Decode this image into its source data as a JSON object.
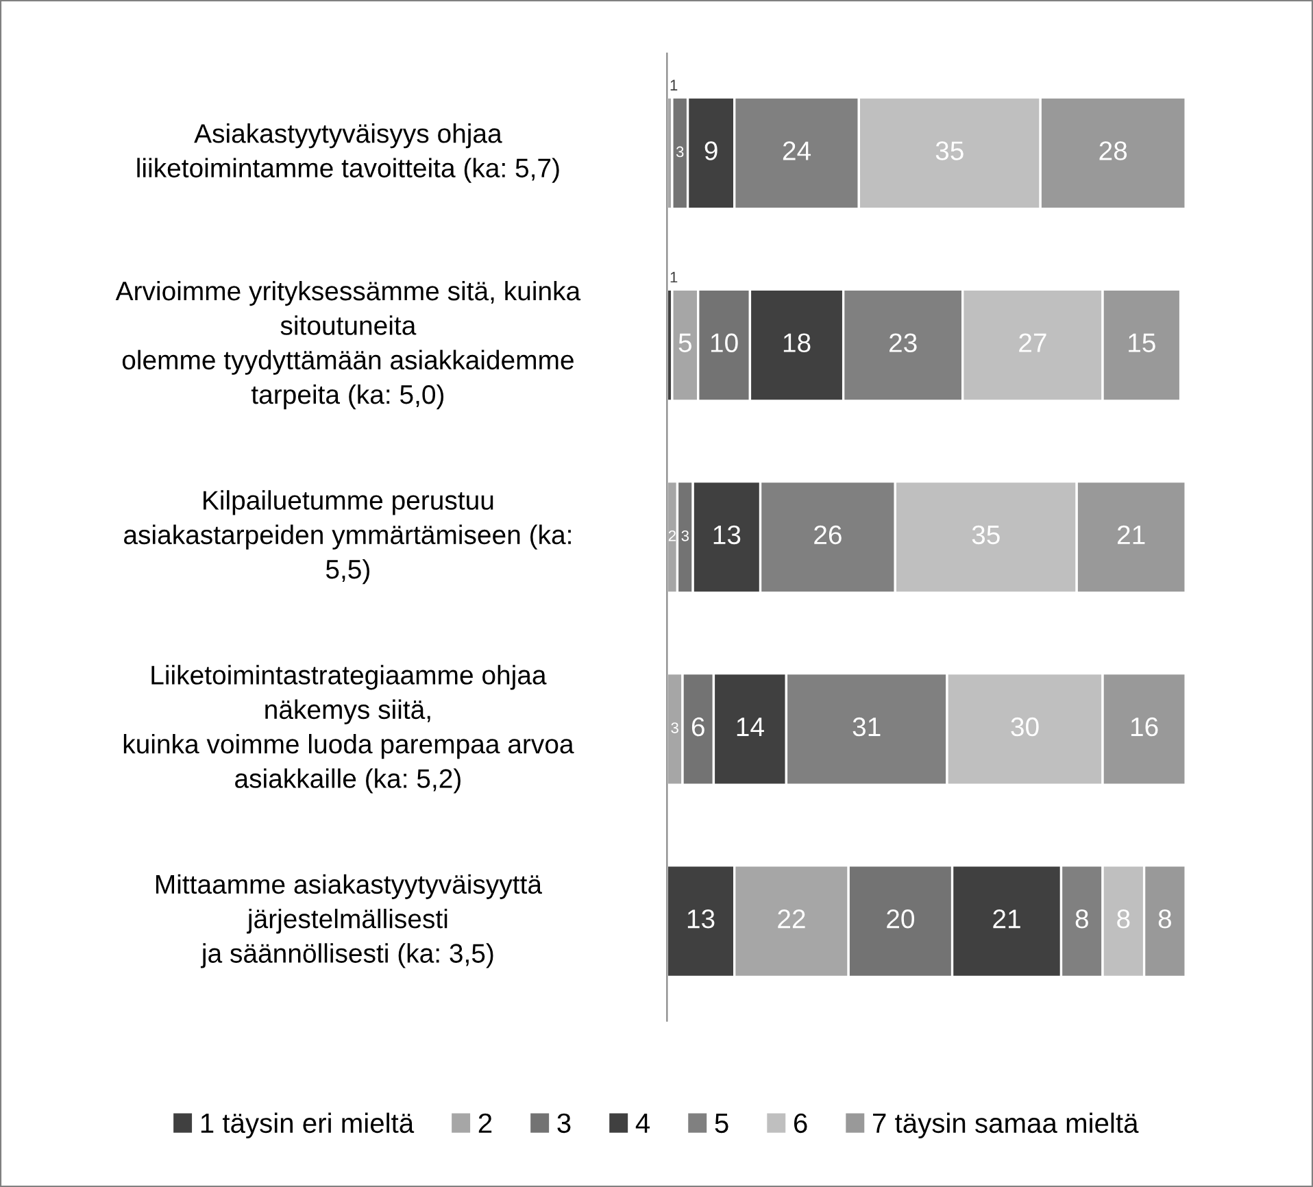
{
  "chart_data": {
    "type": "bar",
    "orientation": "horizontal",
    "stacked": true,
    "data_labels": true,
    "legend": "bottom",
    "grid": false,
    "categories": [
      "Asiakastyytyväisyys ohjaa\nliiketoimintamme tavoitteita (ka: 5,7)",
      "Arvioimme yrityksessämme sitä, kuinka\nsitoutuneita\nolemme tyydyttämään asiakkaidemme\ntarpeita (ka: 5,0)",
      "Kilpailuetumme perustuu\nasiakastarpeiden ymmärtämiseen (ka:\n5,5)",
      "Liiketoimintastrategiaamme ohjaa\nnäkemys siitä,\nkuinka voimme luoda parempaa arvoa\nasiakkaille (ka: 5,2)",
      "Mittaamme asiakastyytyväisyyttä\njärjestelmällisesti\nja säännöllisesti (ka: 3,5)"
    ],
    "series": [
      {
        "name": "1 täysin eri mieltä",
        "color": "#404040",
        "values": [
          null,
          1,
          null,
          null,
          13
        ]
      },
      {
        "name": "2",
        "color": "#a6a6a6",
        "values": [
          1,
          5,
          2,
          3,
          22
        ]
      },
      {
        "name": "3",
        "color": "#737373",
        "values": [
          3,
          10,
          3,
          6,
          20
        ]
      },
      {
        "name": "4",
        "color": "#404040",
        "values": [
          9,
          18,
          13,
          14,
          21
        ]
      },
      {
        "name": "5",
        "color": "#808080",
        "values": [
          24,
          23,
          26,
          31,
          8
        ]
      },
      {
        "name": "6",
        "color": "#bfbfbf",
        "values": [
          35,
          27,
          35,
          30,
          8
        ]
      },
      {
        "name": "7 täysin samaa mieltä",
        "color": "#999999",
        "values": [
          28,
          15,
          21,
          16,
          8
        ]
      }
    ]
  }
}
